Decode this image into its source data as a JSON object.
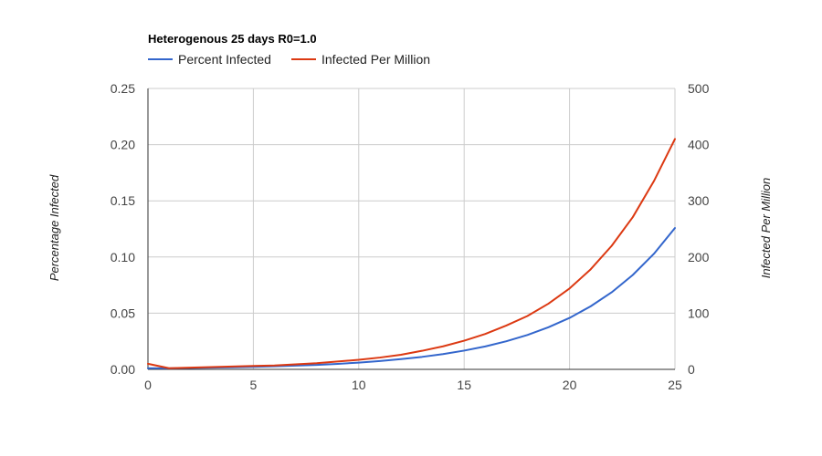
{
  "chart_data": {
    "type": "line",
    "title": "Heterogenous 25 days R0=1.0",
    "x": [
      0,
      1,
      2,
      3,
      4,
      5,
      6,
      7,
      8,
      9,
      10,
      11,
      12,
      13,
      14,
      15,
      16,
      17,
      18,
      19,
      20,
      21,
      22,
      23,
      24,
      25
    ],
    "x_ticks": [
      0,
      5,
      10,
      15,
      20,
      25
    ],
    "xlim": [
      0,
      25
    ],
    "left_axis": {
      "label": "Percentage Infected",
      "ylim": [
        0,
        0.25
      ],
      "ticks": [
        "0.00",
        "0.05",
        "0.10",
        "0.15",
        "0.20",
        "0.25"
      ]
    },
    "right_axis": {
      "label": "Infected Per Million",
      "ylim": [
        0,
        500
      ],
      "ticks": [
        "0",
        "100",
        "200",
        "300",
        "400",
        "500"
      ]
    },
    "series": [
      {
        "name": "Percent Infected",
        "axis": "left",
        "color": "#3366cc",
        "values": [
          0.001,
          0.0009,
          0.0012,
          0.0015,
          0.0018,
          0.0022,
          0.0027,
          0.0033,
          0.004,
          0.0049,
          0.006,
          0.0074,
          0.0091,
          0.0111,
          0.0136,
          0.0167,
          0.0204,
          0.025,
          0.0306,
          0.0375,
          0.0458,
          0.0561,
          0.0686,
          0.084,
          0.1028,
          0.1258
        ]
      },
      {
        "name": "Infected Per Million",
        "axis": "right",
        "color": "#dc3912",
        "values": [
          10,
          2,
          3,
          4,
          5,
          6,
          7,
          9,
          11,
          14,
          17,
          21,
          26,
          33,
          41,
          51,
          63,
          78,
          95,
          117,
          144,
          178,
          220,
          271,
          335,
          410
        ]
      }
    ],
    "legend_position": "top-left",
    "grid": true
  }
}
